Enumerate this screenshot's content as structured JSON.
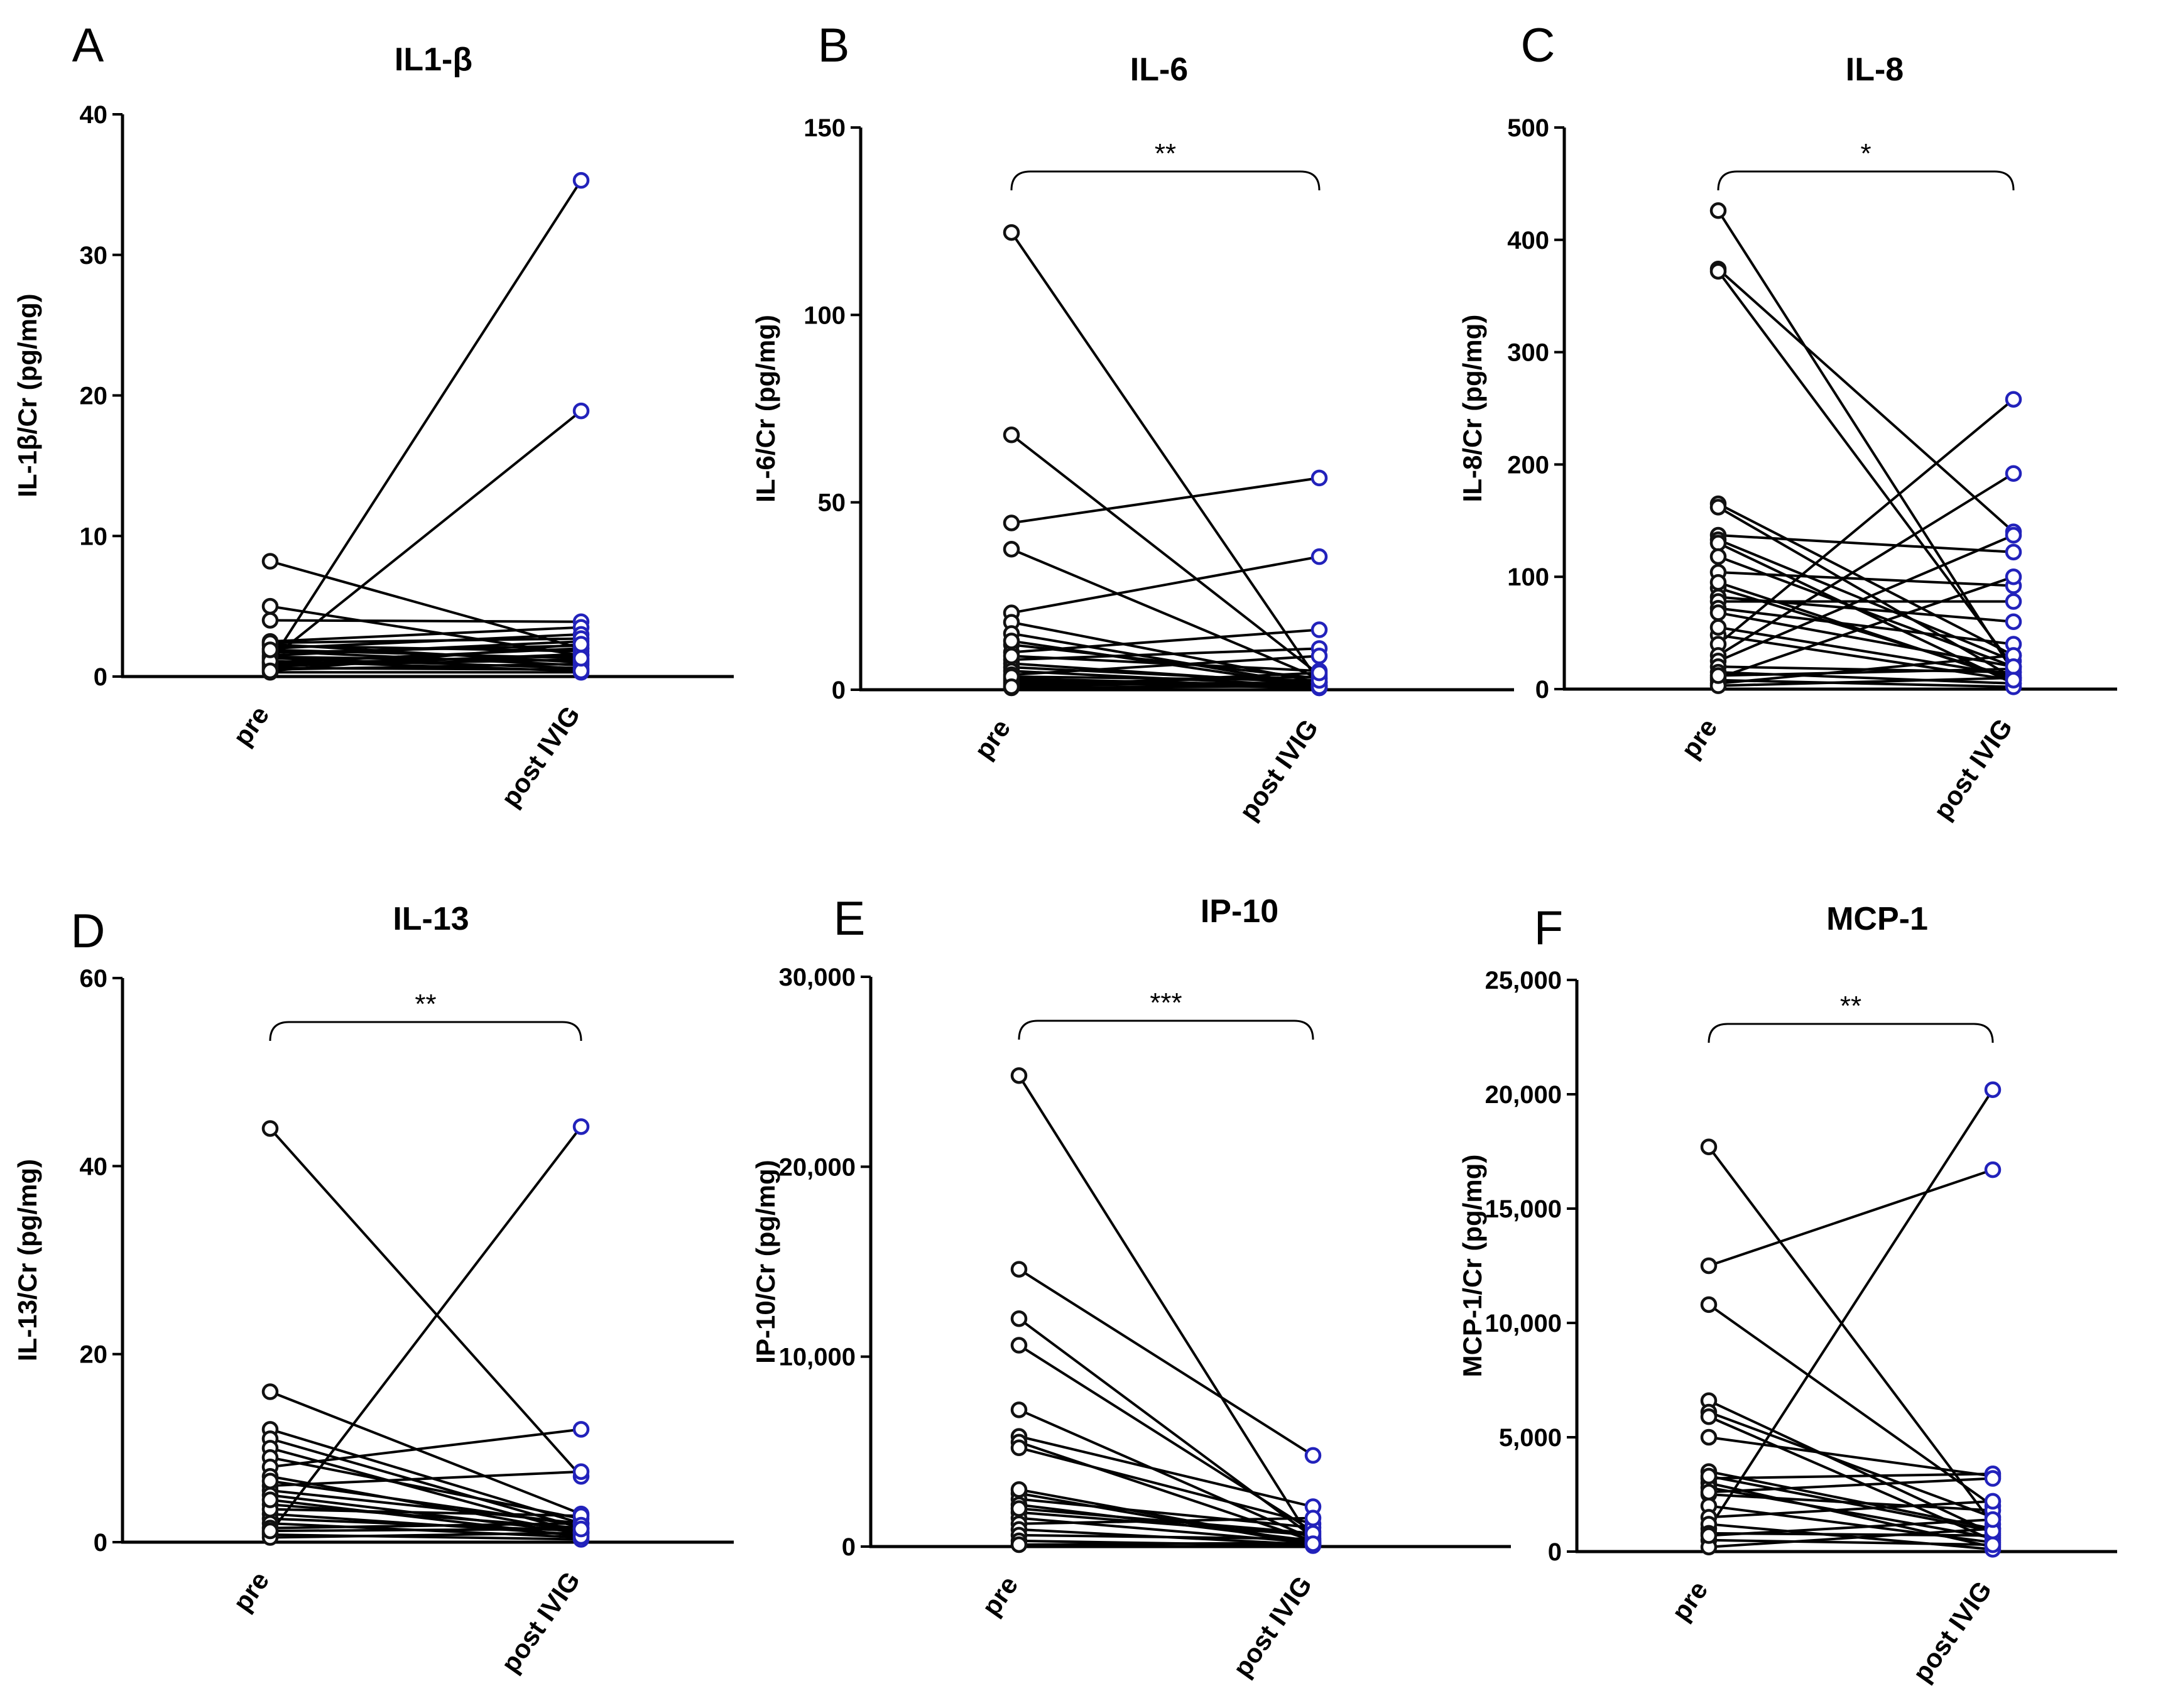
{
  "colors": {
    "pre": "#111111",
    "post": "#2222bb",
    "line": "#000000"
  },
  "chart_data": [
    {
      "type": "line",
      "panel": "A",
      "title": "IL1-β",
      "ylabel": "IL-1β/Cr (pg/mg)",
      "categories": [
        "pre",
        "post IVIG"
      ],
      "ylim": [
        0,
        40
      ],
      "yticks": [
        0,
        10,
        20,
        30,
        40
      ],
      "ytick_labels": [
        "0",
        "10",
        "20",
        "30",
        "40"
      ],
      "significance": "",
      "pairs": [
        [
          1.0,
          35.3
        ],
        [
          1.2,
          18.9
        ],
        [
          8.2,
          2.0
        ],
        [
          5.0,
          1.5
        ],
        [
          4.0,
          3.9
        ],
        [
          2.5,
          3.5
        ],
        [
          2.3,
          1.0
        ],
        [
          2.0,
          3.0
        ],
        [
          1.8,
          0.8
        ],
        [
          1.5,
          2.5
        ],
        [
          1.3,
          0.6
        ],
        [
          1.0,
          2.0
        ],
        [
          0.8,
          1.2
        ],
        [
          0.6,
          0.5
        ],
        [
          2.2,
          1.8
        ],
        [
          1.7,
          2.2
        ],
        [
          0.9,
          1.5
        ],
        [
          0.5,
          0.9
        ],
        [
          0.3,
          0.3
        ],
        [
          1.4,
          1.1
        ],
        [
          2.4,
          2.7
        ],
        [
          0.7,
          1.6
        ],
        [
          1.1,
          0.4
        ],
        [
          1.9,
          1.3
        ],
        [
          0.4,
          2.3
        ]
      ]
    },
    {
      "type": "line",
      "panel": "B",
      "title": "IL-6",
      "ylabel": "IL-6/Cr (pg/mg)",
      "categories": [
        "pre",
        "post IVIG"
      ],
      "ylim": [
        0,
        150
      ],
      "yticks": [
        0,
        50,
        100,
        150
      ],
      "ytick_labels": [
        "0",
        "50",
        "100",
        "150"
      ],
      "significance": "**",
      "pairs": [
        [
          122,
          2
        ],
        [
          68,
          4
        ],
        [
          44.5,
          56.5
        ],
        [
          37.5,
          3
        ],
        [
          20.5,
          35.5
        ],
        [
          18,
          2
        ],
        [
          15,
          1
        ],
        [
          12,
          3
        ],
        [
          10,
          16
        ],
        [
          8,
          11
        ],
        [
          7,
          1.5
        ],
        [
          6,
          2
        ],
        [
          5,
          1
        ],
        [
          4,
          9
        ],
        [
          3,
          1
        ],
        [
          2,
          0.5
        ],
        [
          1.5,
          3.5
        ],
        [
          1,
          2
        ],
        [
          0.5,
          1
        ],
        [
          2.5,
          0.5
        ],
        [
          9,
          5
        ],
        [
          13,
          0.8
        ],
        [
          3.5,
          2.5
        ],
        [
          0.8,
          4.5
        ]
      ]
    },
    {
      "type": "line",
      "panel": "C",
      "title": "IL-8",
      "ylabel": "IL-8/Cr (pg/mg)",
      "categories": [
        "pre",
        "post IVIG"
      ],
      "ylim": [
        0,
        500
      ],
      "yticks": [
        0,
        100,
        200,
        300,
        400,
        500
      ],
      "ytick_labels": [
        "0",
        "100",
        "200",
        "300",
        "400",
        "500"
      ],
      "significance": "*",
      "pairs": [
        [
          426,
          15
        ],
        [
          374,
          140
        ],
        [
          372,
          20
        ],
        [
          165,
          30
        ],
        [
          162,
          10
        ],
        [
          137,
          122
        ],
        [
          133,
          25
        ],
        [
          130,
          5
        ],
        [
          104,
          92
        ],
        [
          90,
          10
        ],
        [
          82,
          60
        ],
        [
          78,
          78
        ],
        [
          72,
          40
        ],
        [
          68,
          20
        ],
        [
          48,
          8
        ],
        [
          40,
          258
        ],
        [
          30,
          192
        ],
        [
          25,
          137
        ],
        [
          20,
          15
        ],
        [
          15,
          5
        ],
        [
          10,
          100
        ],
        [
          8,
          2
        ],
        [
          5,
          30
        ],
        [
          3,
          10
        ],
        [
          12,
          18
        ],
        [
          55,
          12
        ],
        [
          118,
          20
        ],
        [
          95,
          8
        ]
      ]
    },
    {
      "type": "line",
      "panel": "D",
      "title": "IL-13",
      "ylabel": "IL-13/Cr (pg/mg)",
      "categories": [
        "pre",
        "post IVIG"
      ],
      "ylim": [
        0,
        60
      ],
      "yticks": [
        0,
        20,
        40,
        60
      ],
      "ytick_labels": [
        "0",
        "20",
        "40",
        "60"
      ],
      "significance": "**",
      "pairs": [
        [
          44,
          7
        ],
        [
          1,
          44.2
        ],
        [
          16,
          3
        ],
        [
          12,
          2
        ],
        [
          11,
          1.5
        ],
        [
          10,
          1
        ],
        [
          9,
          2.5
        ],
        [
          8,
          12
        ],
        [
          7,
          1
        ],
        [
          6,
          7.5
        ],
        [
          5.5,
          2
        ],
        [
          5,
          1
        ],
        [
          4,
          1.5
        ],
        [
          3,
          0.8
        ],
        [
          2.5,
          1.2
        ],
        [
          2,
          0.5
        ],
        [
          1.5,
          2
        ],
        [
          0.8,
          0.3
        ],
        [
          0.5,
          1
        ],
        [
          3.5,
          2.8
        ],
        [
          4.5,
          0.6
        ],
        [
          6.5,
          1.8
        ],
        [
          1.2,
          1.4
        ]
      ]
    },
    {
      "type": "line",
      "panel": "E",
      "title": "IP-10",
      "ylabel": "IP-10/Cr (pg/mg)",
      "categories": [
        "pre",
        "post IVIG"
      ],
      "ylim": [
        0,
        30000
      ],
      "yticks": [
        0,
        10000,
        20000,
        30000
      ],
      "ytick_labels": [
        "0",
        "10,000",
        "20,000",
        "30,000"
      ],
      "significance": "***",
      "pairs": [
        [
          24800,
          200
        ],
        [
          14600,
          4800
        ],
        [
          12000,
          500
        ],
        [
          10600,
          800
        ],
        [
          7200,
          400
        ],
        [
          5800,
          2100
        ],
        [
          5500,
          300
        ],
        [
          5200,
          1200
        ],
        [
          2800,
          100
        ],
        [
          2500,
          1000
        ],
        [
          2200,
          300
        ],
        [
          1800,
          600
        ],
        [
          1500,
          200
        ],
        [
          1200,
          1500
        ],
        [
          900,
          100
        ],
        [
          600,
          400
        ],
        [
          300,
          50
        ],
        [
          100,
          200
        ],
        [
          2000,
          700
        ],
        [
          3000,
          150
        ]
      ]
    },
    {
      "type": "line",
      "panel": "F",
      "title": "MCP-1",
      "ylabel": "MCP-1/Cr (pg/mg)",
      "categories": [
        "pre",
        "post IVIG"
      ],
      "ylim": [
        0,
        25000
      ],
      "yticks": [
        0,
        5000,
        10000,
        15000,
        20000,
        25000
      ],
      "ytick_labels": [
        "0",
        "5,000",
        "10,000",
        "15,000",
        "20,000",
        "25,000"
      ],
      "significance": "**",
      "pairs": [
        [
          17700,
          1200
        ],
        [
          12500,
          16700
        ],
        [
          10800,
          2000
        ],
        [
          1000,
          20200
        ],
        [
          6600,
          800
        ],
        [
          6100,
          1500
        ],
        [
          5900,
          500
        ],
        [
          5000,
          3300
        ],
        [
          3500,
          1000
        ],
        [
          3200,
          3400
        ],
        [
          3000,
          200
        ],
        [
          2800,
          600
        ],
        [
          2500,
          1800
        ],
        [
          2000,
          400
        ],
        [
          1500,
          2200
        ],
        [
          1200,
          100
        ],
        [
          800,
          700
        ],
        [
          500,
          300
        ],
        [
          200,
          1000
        ],
        [
          2600,
          3200
        ],
        [
          3300,
          900
        ],
        [
          700,
          1400
        ]
      ]
    }
  ]
}
